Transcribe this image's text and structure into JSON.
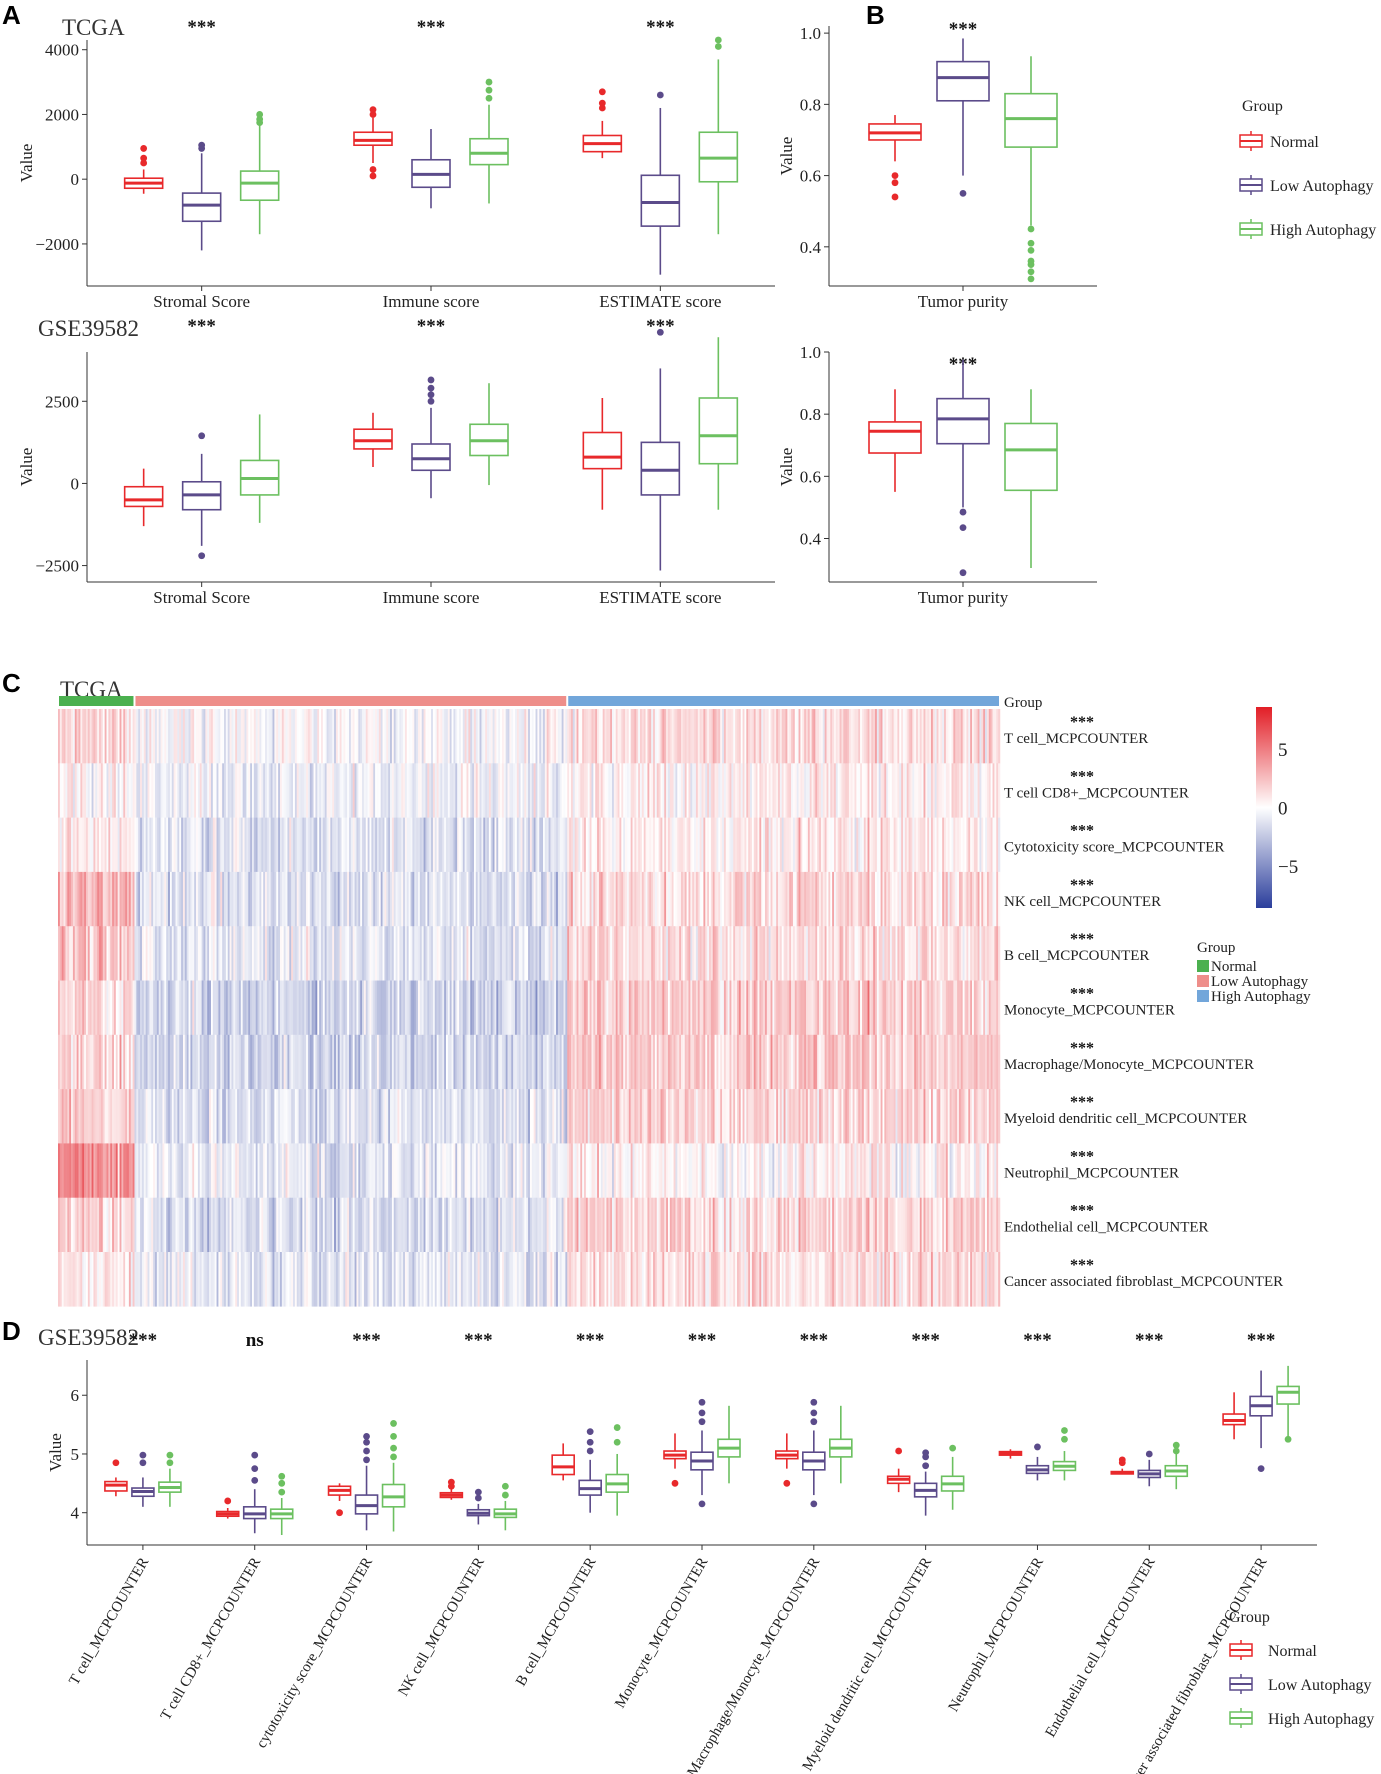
{
  "colors": {
    "Normal": "#E8292B",
    "Low Autophagy": "#5B4B8A",
    "High Autophagy": "#6CC060",
    "bar_Normal": "#4BB04F",
    "bar_Low": "#EE8E8A",
    "bar_High": "#72A6DA",
    "heat_high": "#E21E26",
    "heat_mid": "#FFFFFF",
    "heat_low": "#2B3E9C"
  },
  "legend": {
    "title": "Group",
    "items": [
      "Normal",
      "Low Autophagy",
      "High Autophagy"
    ]
  },
  "panels": {
    "A": "A",
    "B": "B",
    "C": "C",
    "D": "D"
  },
  "chart_data": [
    {
      "id": "A_tcga",
      "type": "boxplot",
      "panel": "A",
      "dataset": "TCGA",
      "ylabel": "Value",
      "ylim": [
        -3300,
        4300
      ],
      "yticks": [
        -2000,
        0,
        2000,
        4000
      ],
      "yticklabels": [
        "−2000",
        "0",
        "2000",
        "4000"
      ],
      "categories": [
        "Stromal Score",
        "Immune score",
        "ESTIMATE score"
      ],
      "significance": [
        "***",
        "***",
        "***"
      ],
      "series": [
        {
          "name": "Normal",
          "boxes": [
            {
              "lw": -450,
              "q1": -280,
              "med": -120,
              "q3": 30,
              "uw": 300,
              "out": [
                500,
                650,
                950
              ]
            },
            {
              "lw": 500,
              "q1": 1050,
              "med": 1200,
              "q3": 1450,
              "uw": 1900,
              "out": [
                100,
                300,
                2000,
                2150
              ]
            },
            {
              "lw": 650,
              "q1": 850,
              "med": 1100,
              "q3": 1350,
              "uw": 1800,
              "out": [
                2200,
                2350,
                2700
              ]
            }
          ]
        },
        {
          "name": "Low Autophagy",
          "boxes": [
            {
              "lw": -2200,
              "q1": -1300,
              "med": -800,
              "q3": -430,
              "uw": 800,
              "out": [
                950,
                1050
              ]
            },
            {
              "lw": -900,
              "q1": -250,
              "med": 150,
              "q3": 600,
              "uw": 1550,
              "out": []
            },
            {
              "lw": -2950,
              "q1": -1450,
              "med": -720,
              "q3": 120,
              "uw": 2200,
              "out": [
                2600
              ]
            }
          ]
        },
        {
          "name": "High Autophagy",
          "boxes": [
            {
              "lw": -1700,
              "q1": -650,
              "med": -120,
              "q3": 250,
              "uw": 1700,
              "out": [
                1750,
                1850,
                2000
              ]
            },
            {
              "lw": -750,
              "q1": 450,
              "med": 800,
              "q3": 1250,
              "uw": 2300,
              "out": [
                2500,
                2750,
                3000
              ]
            },
            {
              "lw": -1700,
              "q1": -80,
              "med": 650,
              "q3": 1450,
              "uw": 3700,
              "out": [
                4100,
                4300
              ]
            }
          ]
        }
      ]
    },
    {
      "id": "A_gse",
      "type": "boxplot",
      "panel": "A",
      "dataset": "GSE39582",
      "ylabel": "Value",
      "ylim": [
        -3000,
        4000
      ],
      "yticks": [
        -2500,
        0,
        2500
      ],
      "yticklabels": [
        "−2500",
        "0",
        "2500"
      ],
      "categories": [
        "Stromal Score",
        "Immune score",
        "ESTIMATE score"
      ],
      "significance": [
        "***",
        "***",
        "***"
      ],
      "series": [
        {
          "name": "Normal",
          "boxes": [
            {
              "lw": -1300,
              "q1": -700,
              "med": -500,
              "q3": -100,
              "uw": 450,
              "out": []
            },
            {
              "lw": 500,
              "q1": 1050,
              "med": 1300,
              "q3": 1650,
              "uw": 2150,
              "out": []
            },
            {
              "lw": -800,
              "q1": 450,
              "med": 800,
              "q3": 1550,
              "uw": 2600,
              "out": []
            }
          ]
        },
        {
          "name": "Low Autophagy",
          "boxes": [
            {
              "lw": -1900,
              "q1": -800,
              "med": -350,
              "q3": 50,
              "uw": 900,
              "out": [
                -2200,
                1450
              ]
            },
            {
              "lw": -450,
              "q1": 400,
              "med": 750,
              "q3": 1200,
              "uw": 2300,
              "out": [
                2500,
                2700,
                2900,
                3150
              ]
            },
            {
              "lw": -2650,
              "q1": -350,
              "med": 400,
              "q3": 1250,
              "uw": 3500,
              "out": [
                4600
              ]
            }
          ]
        },
        {
          "name": "High Autophagy",
          "boxes": [
            {
              "lw": -1200,
              "q1": -350,
              "med": 150,
              "q3": 700,
              "uw": 2100,
              "out": []
            },
            {
              "lw": -50,
              "q1": 850,
              "med": 1300,
              "q3": 1800,
              "uw": 3050,
              "out": []
            },
            {
              "lw": -800,
              "q1": 600,
              "med": 1450,
              "q3": 2600,
              "uw": 4450,
              "out": []
            }
          ]
        }
      ]
    },
    {
      "id": "B_tcga",
      "type": "boxplot",
      "panel": "B",
      "dataset": "TCGA",
      "ylabel": "Value",
      "ylim": [
        0.29,
        1.02
      ],
      "yticks": [
        0.4,
        0.6,
        0.8,
        1.0
      ],
      "yticklabels": [
        "0.4",
        "0.6",
        "0.8",
        "1.0"
      ],
      "categories": [
        "Tumor purity"
      ],
      "significance": [
        "***"
      ],
      "series": [
        {
          "name": "Normal",
          "boxes": [
            {
              "lw": 0.64,
              "q1": 0.7,
              "med": 0.72,
              "q3": 0.745,
              "uw": 0.77,
              "out": [
                0.54,
                0.58,
                0.6
              ]
            }
          ]
        },
        {
          "name": "Low Autophagy",
          "boxes": [
            {
              "lw": 0.6,
              "q1": 0.81,
              "med": 0.875,
              "q3": 0.92,
              "uw": 0.985,
              "out": [
                0.55
              ]
            }
          ]
        },
        {
          "name": "High Autophagy",
          "boxes": [
            {
              "lw": 0.46,
              "q1": 0.68,
              "med": 0.76,
              "q3": 0.83,
              "uw": 0.935,
              "out": [
                0.31,
                0.33,
                0.35,
                0.36,
                0.39,
                0.41,
                0.45
              ]
            }
          ]
        }
      ]
    },
    {
      "id": "B_gse",
      "type": "boxplot",
      "panel": "B",
      "dataset": "GSE39582",
      "ylabel": "Value",
      "ylim": [
        0.26,
        1.0
      ],
      "yticks": [
        0.4,
        0.6,
        0.8,
        1.0
      ],
      "yticklabels": [
        "0.4",
        "0.6",
        "0.8",
        "1.0"
      ],
      "categories": [
        "Tumor purity"
      ],
      "significance": [
        "***"
      ],
      "series": [
        {
          "name": "Normal",
          "boxes": [
            {
              "lw": 0.55,
              "q1": 0.675,
              "med": 0.745,
              "q3": 0.775,
              "uw": 0.88,
              "out": []
            }
          ]
        },
        {
          "name": "Low Autophagy",
          "boxes": [
            {
              "lw": 0.5,
              "q1": 0.705,
              "med": 0.785,
              "q3": 0.85,
              "uw": 0.975,
              "out": [
                0.29,
                0.435,
                0.485
              ]
            }
          ]
        },
        {
          "name": "High Autophagy",
          "boxes": [
            {
              "lw": 0.305,
              "q1": 0.555,
              "med": 0.685,
              "q3": 0.77,
              "uw": 0.88,
              "out": []
            }
          ]
        }
      ]
    },
    {
      "id": "C_heatmap",
      "type": "heatmap",
      "panel": "C",
      "dataset": "TCGA",
      "group_label": "Group",
      "groups": [
        {
          "name": "Normal",
          "samples": 41
        },
        {
          "name": "Low Autophagy",
          "samples": 232
        },
        {
          "name": "High Autophagy",
          "samples": 232
        }
      ],
      "rows": [
        "T cell_MCPCOUNTER",
        "T cell CD8+_MCPCOUNTER",
        "Cytotoxicity score_MCPCOUNTER",
        "NK cell_MCPCOUNTER",
        "B cell_MCPCOUNTER",
        "Monocyte_MCPCOUNTER",
        "Macrophage/Monocyte_MCPCOUNTER",
        "Myeloid dendritic cell_MCPCOUNTER",
        "Neutrophil_MCPCOUNTER",
        "Endothelial cell_MCPCOUNTER",
        "Cancer associated fibroblast_MCPCOUNTER"
      ],
      "significance": [
        "***",
        "***",
        "***",
        "***",
        "***",
        "***",
        "***",
        "***",
        "***",
        "***",
        "***"
      ],
      "row_mean_z": {
        "Normal": [
          1.4,
          0.4,
          0.8,
          2.8,
          2.2,
          1.6,
          1.6,
          2.0,
          4.2,
          1.6,
          1.0
        ],
        "Low Autophagy": [
          -0.2,
          -0.6,
          -1.2,
          -1.4,
          -1.0,
          -1.8,
          -1.8,
          -1.2,
          -0.8,
          -1.4,
          -0.9
        ],
        "High Autophagy": [
          1.4,
          0.6,
          0.8,
          1.4,
          1.2,
          2.0,
          2.0,
          1.6,
          0.5,
          1.6,
          1.3
        ]
      },
      "colorbar": {
        "range": [
          -8.6,
          8.6
        ],
        "ticks": [
          5,
          0,
          -5
        ],
        "ticklabels": [
          "5",
          "0",
          "−5"
        ]
      }
    },
    {
      "id": "D_gse",
      "type": "boxplot",
      "panel": "D",
      "dataset": "GSE39582",
      "ylabel": "Value",
      "ylim": [
        3.45,
        6.6
      ],
      "yticks": [
        4,
        5,
        6
      ],
      "yticklabels": [
        "4",
        "5",
        "6"
      ],
      "categories": [
        "T cell_MCPCOUNTER",
        "T cell CD8+_MCPCOUNTER",
        "cytotoxicity score_MCPCOUNTER",
        "NK cell_MCPCOUNTER",
        "B cell_MCPCOUNTER",
        "Monocyte_MCPCOUNTER",
        "Macrophage/Monocyte_MCPCOUNTER",
        "Myeloid dendritic cell_MCPCOUNTER",
        "Neutrophil_MCPCOUNTER",
        "Endothelial cell_MCPCOUNTER",
        "Cancer associated fibroblast_MCPCOUNTER"
      ],
      "significance": [
        "***",
        "ns",
        "***",
        "***",
        "***",
        "***",
        "***",
        "***",
        "***",
        "***",
        "***"
      ],
      "series": [
        {
          "name": "Normal",
          "boxes": [
            {
              "lw": 4.28,
              "q1": 4.37,
              "med": 4.47,
              "q3": 4.53,
              "uw": 4.6,
              "out": [
                4.85
              ]
            },
            {
              "lw": 3.9,
              "q1": 3.94,
              "med": 3.98,
              "q3": 4.02,
              "uw": 4.08,
              "out": [
                4.2
              ]
            },
            {
              "lw": 4.2,
              "q1": 4.3,
              "med": 4.38,
              "q3": 4.45,
              "uw": 4.5,
              "out": [
                4.0
              ]
            },
            {
              "lw": 4.22,
              "q1": 4.26,
              "med": 4.3,
              "q3": 4.34,
              "uw": 4.4,
              "out": [
                4.45,
                4.52
              ]
            },
            {
              "lw": 4.55,
              "q1": 4.65,
              "med": 4.78,
              "q3": 4.98,
              "uw": 5.18,
              "out": []
            },
            {
              "lw": 4.75,
              "q1": 4.92,
              "med": 4.98,
              "q3": 5.05,
              "uw": 5.35,
              "out": [
                4.5
              ]
            },
            {
              "lw": 4.75,
              "q1": 4.92,
              "med": 4.98,
              "q3": 5.05,
              "uw": 5.35,
              "out": [
                4.5
              ]
            },
            {
              "lw": 4.35,
              "q1": 4.5,
              "med": 4.57,
              "q3": 4.62,
              "uw": 4.75,
              "out": [
                5.05
              ]
            },
            {
              "lw": 4.92,
              "q1": 4.98,
              "med": 5.01,
              "q3": 5.04,
              "uw": 5.08,
              "out": []
            },
            {
              "lw": 4.65,
              "q1": 4.66,
              "med": 4.68,
              "q3": 4.7,
              "uw": 4.75,
              "out": [
                4.85,
                4.9
              ]
            },
            {
              "lw": 5.25,
              "q1": 5.5,
              "med": 5.57,
              "q3": 5.68,
              "uw": 6.05,
              "out": []
            }
          ]
        },
        {
          "name": "Low Autophagy",
          "boxes": [
            {
              "lw": 4.1,
              "q1": 4.28,
              "med": 4.36,
              "q3": 4.42,
              "uw": 4.6,
              "out": [
                4.85,
                4.98
              ]
            },
            {
              "lw": 3.65,
              "q1": 3.9,
              "med": 3.98,
              "q3": 4.1,
              "uw": 4.4,
              "out": [
                4.55,
                4.75,
                4.98
              ]
            },
            {
              "lw": 3.7,
              "q1": 3.98,
              "med": 4.12,
              "q3": 4.3,
              "uw": 4.8,
              "out": [
                4.9,
                5.05,
                5.2,
                5.3
              ]
            },
            {
              "lw": 3.8,
              "q1": 3.95,
              "med": 3.99,
              "q3": 4.05,
              "uw": 4.15,
              "out": [
                4.25,
                4.35
              ]
            },
            {
              "lw": 4.0,
              "q1": 4.3,
              "med": 4.41,
              "q3": 4.55,
              "uw": 4.9,
              "out": [
                5.05,
                5.2,
                5.38
              ]
            },
            {
              "lw": 4.3,
              "q1": 4.73,
              "med": 4.88,
              "q3": 5.03,
              "uw": 5.4,
              "out": [
                4.15,
                5.55,
                5.7,
                5.88
              ]
            },
            {
              "lw": 4.3,
              "q1": 4.73,
              "med": 4.88,
              "q3": 5.03,
              "uw": 5.4,
              "out": [
                4.15,
                5.55,
                5.7,
                5.88
              ]
            },
            {
              "lw": 3.95,
              "q1": 4.27,
              "med": 4.38,
              "q3": 4.5,
              "uw": 4.7,
              "out": [
                4.8,
                4.95,
                5.02
              ]
            },
            {
              "lw": 4.55,
              "q1": 4.67,
              "med": 4.73,
              "q3": 4.8,
              "uw": 4.95,
              "out": [
                5.12
              ]
            },
            {
              "lw": 4.45,
              "q1": 4.6,
              "med": 4.66,
              "q3": 4.72,
              "uw": 4.9,
              "out": [
                5.0
              ]
            },
            {
              "lw": 5.1,
              "q1": 5.65,
              "med": 5.82,
              "q3": 5.98,
              "uw": 6.42,
              "out": [
                4.75
              ]
            }
          ]
        },
        {
          "name": "High Autophagy",
          "boxes": [
            {
              "lw": 4.1,
              "q1": 4.35,
              "med": 4.43,
              "q3": 4.52,
              "uw": 4.75,
              "out": [
                4.85,
                4.98
              ]
            },
            {
              "lw": 3.62,
              "q1": 3.9,
              "med": 3.98,
              "q3": 4.06,
              "uw": 4.25,
              "out": [
                4.35,
                4.5,
                4.62
              ]
            },
            {
              "lw": 3.68,
              "q1": 4.1,
              "med": 4.27,
              "q3": 4.48,
              "uw": 4.85,
              "out": [
                4.95,
                5.1,
                5.3,
                5.52
              ]
            },
            {
              "lw": 3.7,
              "q1": 3.92,
              "med": 3.98,
              "q3": 4.06,
              "uw": 4.2,
              "out": [
                4.3,
                4.45
              ]
            },
            {
              "lw": 3.95,
              "q1": 4.35,
              "med": 4.49,
              "q3": 4.65,
              "uw": 5.0,
              "out": [
                5.2,
                5.45
              ]
            },
            {
              "lw": 4.5,
              "q1": 4.95,
              "med": 5.1,
              "q3": 5.25,
              "uw": 5.82,
              "out": []
            },
            {
              "lw": 4.5,
              "q1": 4.95,
              "med": 5.1,
              "q3": 5.25,
              "uw": 5.82,
              "out": []
            },
            {
              "lw": 4.05,
              "q1": 4.37,
              "med": 4.49,
              "q3": 4.62,
              "uw": 4.95,
              "out": [
                5.1
              ]
            },
            {
              "lw": 4.55,
              "q1": 4.72,
              "med": 4.79,
              "q3": 4.87,
              "uw": 5.05,
              "out": [
                5.25,
                5.4
              ]
            },
            {
              "lw": 4.4,
              "q1": 4.62,
              "med": 4.71,
              "q3": 4.8,
              "uw": 5.0,
              "out": [
                5.05,
                5.15
              ]
            },
            {
              "lw": 5.3,
              "q1": 5.85,
              "med": 6.05,
              "q3": 6.15,
              "uw": 6.5,
              "out": [
                5.25
              ]
            }
          ]
        }
      ]
    }
  ]
}
